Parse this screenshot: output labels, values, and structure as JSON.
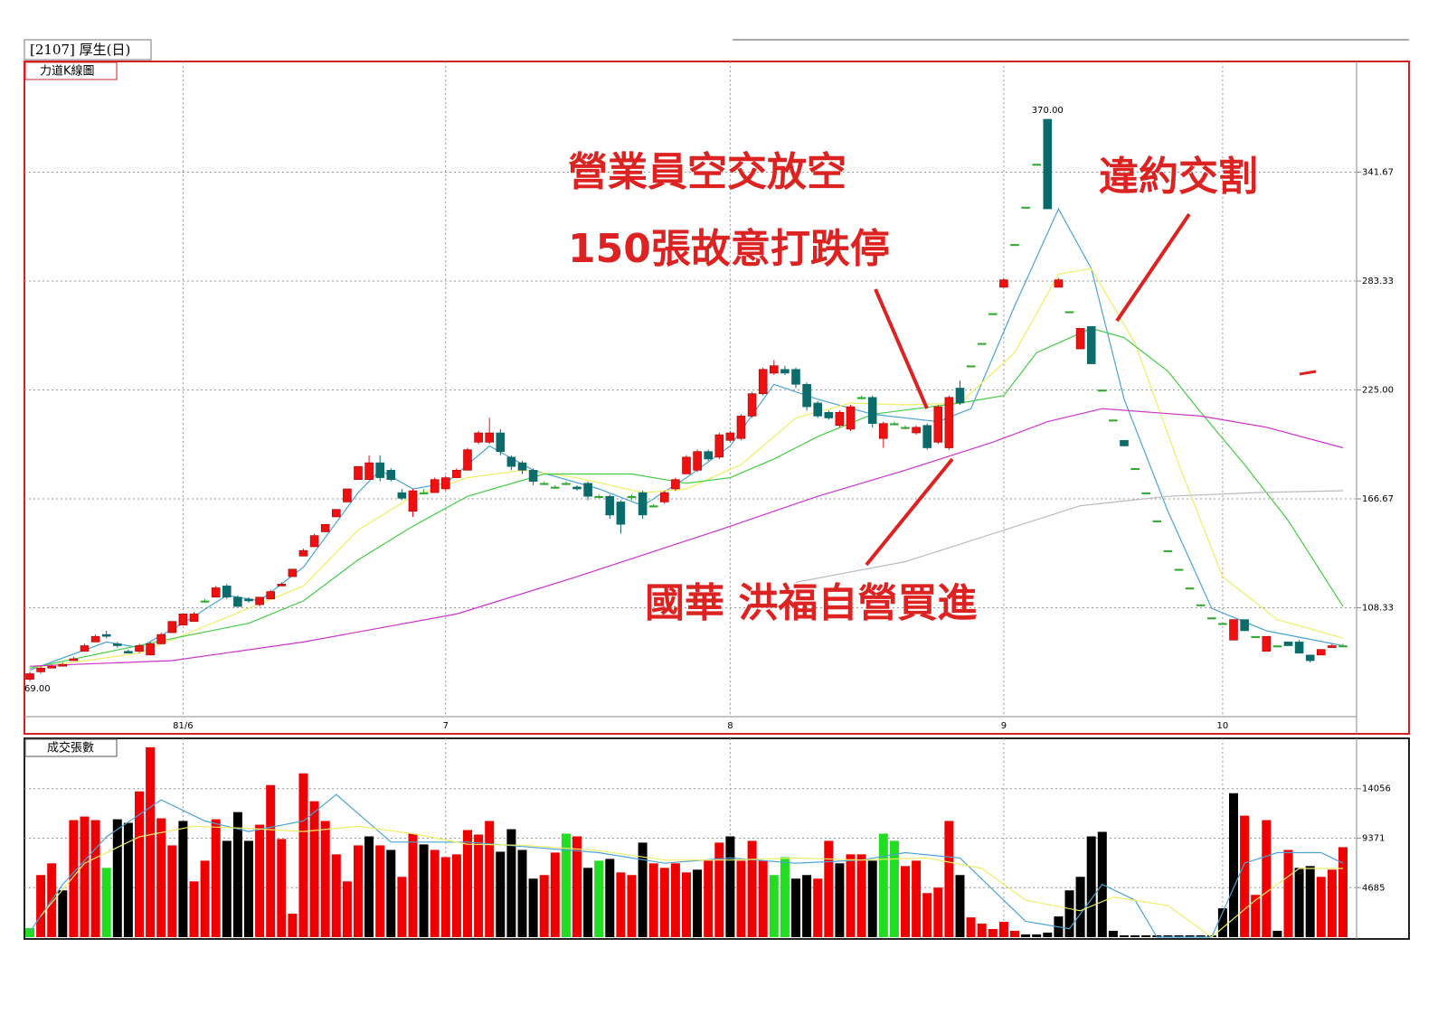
{
  "chart_data": {
    "type": "candlestick",
    "title": "[2107] 厚生(日)",
    "panel_label": "力道K線圖",
    "categories": [
      null,
      null,
      null,
      null,
      null,
      null,
      null,
      null,
      null,
      null,
      null,
      null,
      null,
      null,
      "81/6",
      null,
      null,
      null,
      null,
      null,
      null,
      null,
      null,
      null,
      null,
      null,
      null,
      null,
      null,
      null,
      null,
      null,
      null,
      null,
      null,
      null,
      null,
      null,
      "7",
      null,
      null,
      null,
      null,
      null,
      null,
      null,
      null,
      null,
      null,
      null,
      null,
      null,
      null,
      null,
      null,
      null,
      null,
      null,
      null,
      null,
      null,
      null,
      null,
      null,
      "8",
      null,
      null,
      null,
      null,
      null,
      null,
      null,
      null,
      null,
      null,
      null,
      null,
      null,
      null,
      null,
      null,
      null,
      null,
      null,
      null,
      null,
      null,
      null,
      null,
      "9",
      null,
      null,
      null,
      null,
      null,
      null,
      null,
      null,
      null,
      null,
      null,
      null,
      null,
      null,
      null,
      null,
      null,
      null,
      null,
      "10",
      null,
      null,
      null,
      null,
      null,
      null,
      null,
      null,
      null,
      null,
      null,
      null
    ],
    "ohlc": [
      [
        70,
        74,
        69,
        73
      ],
      [
        74,
        77,
        73,
        76
      ],
      [
        76,
        78,
        76,
        77
      ],
      [
        77,
        79,
        77,
        78
      ],
      [
        80,
        82,
        80,
        81
      ],
      [
        85,
        89,
        85,
        88
      ],
      [
        90,
        94,
        90,
        93
      ],
      [
        94,
        96,
        92,
        93
      ],
      [
        89,
        90,
        87,
        88
      ],
      [
        85,
        86,
        84,
        84
      ],
      [
        85,
        89,
        84,
        88
      ],
      [
        83,
        90,
        83,
        89
      ],
      [
        89,
        95,
        89,
        94
      ],
      [
        95,
        101,
        95,
        101
      ],
      [
        99,
        105,
        99,
        105
      ],
      [
        101,
        106,
        101,
        105
      ],
      [
        112,
        113,
        111,
        112
      ],
      [
        114,
        120,
        114,
        119
      ],
      [
        120,
        121,
        113,
        114
      ],
      [
        114,
        115,
        109,
        109
      ],
      [
        113,
        114,
        111,
        112
      ],
      [
        110,
        114,
        109,
        114
      ],
      [
        113,
        118,
        113,
        117
      ],
      [
        120,
        122,
        120,
        121
      ],
      [
        125,
        129,
        125,
        129
      ],
      [
        136,
        140,
        136,
        139
      ],
      [
        141,
        148,
        141,
        147
      ],
      [
        149,
        153,
        149,
        153
      ],
      [
        157,
        161,
        157,
        161
      ],
      [
        165,
        172,
        165,
        172
      ],
      [
        177,
        184,
        177,
        184
      ],
      [
        177,
        190,
        177,
        186
      ],
      [
        186,
        190,
        176,
        178
      ],
      [
        182,
        183,
        176,
        177
      ],
      [
        170,
        172,
        166,
        167
      ],
      [
        160,
        172,
        157,
        171
      ],
      [
        170,
        172,
        169,
        170
      ],
      [
        170,
        178,
        170,
        177
      ],
      [
        172,
        179,
        171,
        178
      ],
      [
        178,
        183,
        178,
        182
      ],
      [
        182,
        194,
        182,
        193
      ],
      [
        197,
        203,
        196,
        202
      ],
      [
        197,
        210,
        196,
        202
      ],
      [
        202,
        204,
        190,
        192
      ],
      [
        189,
        190,
        182,
        184
      ],
      [
        186,
        187,
        180,
        182
      ],
      [
        182,
        183,
        174,
        176
      ],
      [
        175,
        176,
        174,
        175
      ],
      [
        173,
        174,
        172,
        173
      ],
      [
        175,
        176,
        174,
        175
      ],
      [
        173,
        174,
        171,
        172
      ],
      [
        175,
        176,
        166,
        168
      ],
      [
        168,
        169,
        167,
        168
      ],
      [
        168,
        169,
        156,
        158
      ],
      [
        165,
        166,
        148,
        153
      ],
      [
        168,
        169,
        166,
        168
      ],
      [
        170,
        171,
        156,
        158
      ],
      [
        163,
        164,
        162,
        163
      ],
      [
        165,
        171,
        164,
        170
      ],
      [
        172,
        178,
        171,
        177
      ],
      [
        180,
        190,
        180,
        189
      ],
      [
        182,
        193,
        181,
        192
      ],
      [
        192,
        193,
        187,
        188
      ],
      [
        189,
        202,
        188,
        201
      ],
      [
        198,
        203,
        197,
        202
      ],
      [
        199,
        212,
        198,
        211
      ],
      [
        211,
        224,
        210,
        223
      ],
      [
        223,
        237,
        222,
        236
      ],
      [
        234,
        241,
        233,
        238
      ],
      [
        236,
        238,
        233,
        234
      ],
      [
        236,
        237,
        226,
        228
      ],
      [
        228,
        229,
        214,
        216
      ],
      [
        218,
        219,
        210,
        211
      ],
      [
        213,
        214,
        209,
        210
      ],
      [
        206,
        214,
        205,
        213
      ],
      [
        204,
        217,
        203,
        216
      ],
      [
        221,
        222,
        220,
        221
      ],
      [
        221,
        222,
        205,
        207
      ],
      [
        199,
        208,
        194,
        207
      ],
      [
        207,
        208,
        206,
        207
      ],
      [
        205,
        206,
        204,
        205
      ],
      [
        202,
        206,
        201,
        205
      ],
      [
        206,
        207,
        193,
        194
      ],
      [
        197,
        217,
        196,
        216
      ],
      [
        194,
        222,
        193,
        221
      ],
      [
        226,
        230,
        217,
        218
      ],
      [
        238,
        238,
        238,
        238
      ],
      [
        250,
        250,
        250,
        250
      ],
      [
        266,
        266,
        266,
        266
      ],
      [
        280,
        285,
        280,
        284
      ],
      [
        303,
        303,
        303,
        303
      ],
      [
        323,
        323,
        323,
        323
      ],
      [
        346,
        346,
        346,
        346
      ],
      [
        370,
        370,
        322,
        322
      ],
      [
        280,
        285,
        280,
        284
      ],
      [
        267,
        267,
        267,
        267
      ],
      [
        247,
        258,
        247,
        258
      ],
      [
        259,
        259,
        239,
        239
      ],
      [
        225,
        225,
        225,
        225
      ],
      [
        209,
        209,
        209,
        209
      ],
      [
        198,
        198,
        195,
        195
      ],
      [
        183,
        183,
        183,
        183
      ],
      [
        170,
        170,
        170,
        170
      ],
      [
        155,
        155,
        155,
        155
      ],
      [
        139,
        139,
        139,
        139
      ],
      [
        129,
        129,
        129,
        129
      ],
      [
        119,
        119,
        119,
        119
      ],
      [
        110,
        110,
        110,
        110
      ],
      [
        103,
        103,
        103,
        103
      ],
      [
        100,
        100,
        100,
        100
      ],
      [
        91,
        102,
        91,
        102
      ],
      [
        102,
        102,
        96,
        96
      ],
      [
        93,
        93,
        93,
        93
      ],
      [
        85,
        93,
        85,
        93
      ],
      [
        88,
        88,
        88,
        88
      ],
      [
        90,
        90,
        88,
        88
      ],
      [
        90,
        91,
        84,
        84
      ],
      [
        83,
        83,
        79,
        80
      ],
      [
        83,
        86,
        83,
        86
      ],
      [
        87,
        89,
        87,
        88
      ],
      [
        88,
        89,
        88,
        88
      ]
    ],
    "up_color": "#ee1111",
    "down_color": "#0b6b6b",
    "flat_color": "#33aa33",
    "ylim": [
      50,
      400
    ],
    "yticks": [
      108.33,
      166.67,
      {
        "value": 225,
        "label": "225.00"
      },
      283.33,
      341.67
    ],
    "grid": true,
    "extremes": [
      {
        "index": 93,
        "value": 370,
        "label": "370.00"
      },
      {
        "index": 0,
        "value": 69,
        "label": "69.00"
      }
    ],
    "moving_averages": [
      {
        "color": "#4aa3d6",
        "x": [
          0,
          7,
          10,
          14,
          18,
          21,
          25,
          30,
          32,
          35,
          38,
          42,
          46,
          52,
          56,
          60,
          64,
          68,
          72,
          77,
          83,
          86,
          90,
          94,
          97,
          100,
          104,
          108,
          113,
          120
        ],
        "values": [
          75,
          90,
          87,
          100,
          115,
          112,
          130,
          170,
          182,
          172,
          175,
          195,
          182,
          172,
          163,
          178,
          195,
          228,
          220,
          212,
          208,
          215,
          270,
          322,
          290,
          220,
          160,
          108,
          96,
          88
        ]
      },
      {
        "color": "#eeee66",
        "x": [
          0,
          10,
          15,
          20,
          25,
          30,
          35,
          40,
          45,
          50,
          56,
          60,
          65,
          70,
          75,
          80,
          85,
          90,
          94,
          97,
          101,
          105,
          109,
          114,
          120
        ],
        "values": [
          76,
          84,
          96,
          108,
          120,
          150,
          168,
          178,
          182,
          178,
          170,
          172,
          185,
          210,
          218,
          217,
          218,
          245,
          287,
          290,
          250,
          185,
          125,
          102,
          92
        ]
      },
      {
        "color": "#44cc44",
        "x": [
          0,
          14,
          20,
          25,
          30,
          35,
          40,
          47,
          55,
          60,
          64,
          68,
          72,
          77,
          85,
          89,
          92,
          97,
          100,
          104,
          107,
          111,
          115,
          120
        ],
        "values": [
          76,
          93,
          100,
          112,
          134,
          152,
          168,
          180,
          180,
          175,
          178,
          188,
          200,
          212,
          218,
          222,
          245,
          258,
          253,
          235,
          213,
          185,
          155,
          109
        ]
      },
      {
        "color": "#cc33cc",
        "x": [
          0,
          13,
          25,
          39,
          50,
          63,
          72,
          80,
          88,
          93,
          98,
          107,
          113,
          120
        ],
        "values": [
          77,
          80,
          90,
          105,
          125,
          150,
          168,
          182,
          197,
          208,
          215,
          211,
          205,
          194
        ]
      },
      {
        "color": "#bbbbbb",
        "x": [
          70,
          80,
          88,
          96,
          104,
          112,
          120
        ],
        "values": [
          122,
          133,
          148,
          163,
          168,
          170,
          171
        ]
      }
    ],
    "annotations": [
      "營業員空交放空",
      "150張故意打跌停",
      "違約交割",
      "國華  洪福自營買進"
    ],
    "volume": {
      "label": "成交張數",
      "values": [
        850,
        5880,
        6990,
        4430,
        11080,
        11420,
        11080,
        6560,
        11160,
        10820,
        13800,
        17980,
        11250,
        8690,
        11000,
        5280,
        7240,
        11160,
        9120,
        11840,
        9120,
        10650,
        14400,
        9290,
        2220,
        15510,
        12870,
        11000,
        7840,
        5280,
        8690,
        9540,
        8690,
        8260,
        5710,
        9800,
        8780,
        8260,
        7580,
        7840,
        10140,
        9710,
        11000,
        8090,
        10220,
        8260,
        5540,
        5880,
        8010,
        9800,
        9540,
        6560,
        7240,
        7410,
        6130,
        5880,
        8950,
        6990,
        6560,
        6990,
        6130,
        6390,
        7240,
        8950,
        9540,
        7240,
        9120,
        7240,
        5880,
        7580,
        5540,
        5880,
        5540,
        9120,
        6990,
        7840,
        7840,
        7240,
        9800,
        9120,
        6730,
        7240,
        4170,
        4690,
        11000,
        5880,
        1870,
        1280,
        770,
        1450,
        600,
        260,
        260,
        430,
        1960,
        4430,
        5710,
        9540,
        9970,
        600,
        170,
        170,
        170,
        170,
        170,
        170,
        170,
        170,
        170,
        2730,
        13630,
        11500,
        4000,
        11080,
        600,
        8260,
        6560,
        6730,
        5710,
        6390,
        8520
      ],
      "colors": [
        "#2d2",
        "#e00",
        "#e00",
        "#000",
        "#e00",
        "#e00",
        "#e00",
        "#2d2",
        "#000",
        "#000",
        "#e00",
        "#e00",
        "#e00",
        "#e00",
        "#000",
        "#e00",
        "#e00",
        "#e00",
        "#000",
        "#000",
        "#000",
        "#e00",
        "#e00",
        "#e00",
        "#e00",
        "#e00",
        "#e00",
        "#e00",
        "#e00",
        "#e00",
        "#e00",
        "#000",
        "#e00",
        "#000",
        "#e00",
        "#e00",
        "#000",
        "#e00",
        "#e00",
        "#e00",
        "#e00",
        "#e00",
        "#e00",
        "#000",
        "#000",
        "#000",
        "#000",
        "#e00",
        "#e00",
        "#2d2",
        "#e00",
        "#000",
        "#2d2",
        "#000",
        "#e00",
        "#e00",
        "#000",
        "#e00",
        "#e00",
        "#e00",
        "#e00",
        "#000",
        "#e00",
        "#e00",
        "#000",
        "#e00",
        "#e00",
        "#e00",
        "#2d2",
        "#2d2",
        "#000",
        "#000",
        "#e00",
        "#e00",
        "#000",
        "#e00",
        "#e00",
        "#000",
        "#2d2",
        "#2d2",
        "#e00",
        "#e00",
        "#e00",
        "#e00",
        "#e00",
        "#000",
        "#e00",
        "#e00",
        "#e00",
        "#e00",
        "#e00",
        "#000",
        "#000",
        "#000",
        "#000",
        "#000",
        "#000",
        "#000",
        "#000",
        "#000",
        "#000",
        "#000",
        "#000",
        "#000",
        "#000",
        "#000",
        "#000",
        "#000",
        "#000",
        "#000",
        "#000",
        "#e00",
        "#e00",
        "#e00",
        "#000",
        "#e00",
        "#000",
        "#000",
        "#e00",
        "#e00",
        "#e00"
      ],
      "ylim": [
        0,
        18740
      ],
      "yticks": [
        4685,
        9371,
        14056
      ],
      "moving_averages": [
        {
          "color": "#4aa3d6",
          "x": [
            0,
            3,
            7,
            12,
            16,
            20,
            25,
            28,
            33,
            40,
            46,
            52,
            58,
            64,
            70,
            76,
            80,
            85,
            88,
            91,
            95,
            98,
            101,
            103,
            108,
            111,
            114,
            118,
            120
          ],
          "values": [
            500,
            5000,
            9500,
            13000,
            11000,
            10000,
            11000,
            13500,
            9000,
            9000,
            8500,
            8000,
            7000,
            7500,
            7000,
            7300,
            8000,
            7500,
            4500,
            1500,
            800,
            5000,
            3500,
            0,
            0,
            7000,
            8000,
            8000,
            7000
          ]
        },
        {
          "color": "#eeee66",
          "x": [
            1,
            5,
            10,
            15,
            20,
            25,
            30,
            35,
            40,
            45,
            52,
            58,
            64,
            70,
            76,
            82,
            87,
            91,
            96,
            99,
            104,
            108,
            112,
            116,
            120
          ],
          "values": [
            2000,
            7000,
            9500,
            10500,
            10300,
            10000,
            10500,
            9800,
            8800,
            8700,
            8200,
            7300,
            7300,
            7500,
            7300,
            7500,
            6500,
            3500,
            2500,
            3800,
            3000,
            0,
            3500,
            6500,
            6500
          ]
        }
      ]
    }
  }
}
